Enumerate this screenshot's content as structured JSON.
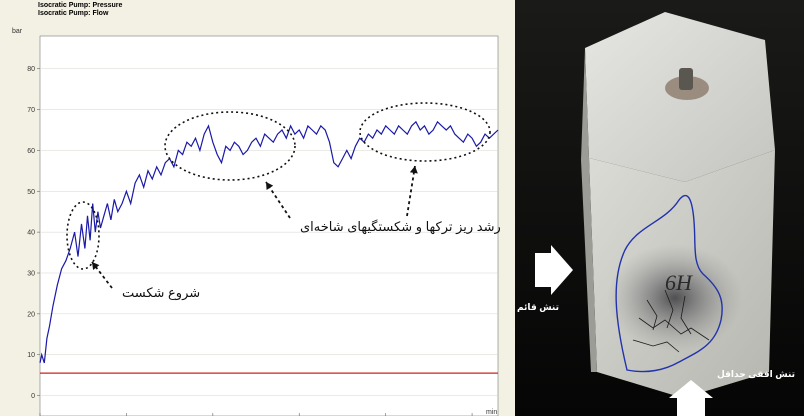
{
  "legend": {
    "pressure_label": "Isocratic Pump: Pressure",
    "flow_label": "Isocratic Pump: Flow",
    "pressure_color": "#1a1aa8",
    "flow_color": "#cc2222"
  },
  "annotations": {
    "crack_growth": "رشد ریز ترکها و شکستگیهای شاخه‌ای",
    "fracture_start": "شروع شکست"
  },
  "photo": {
    "vertical_stress_label": "تنش قائم",
    "min_horizontal_stress_label": "تنش افقی حداقل",
    "specimen_mark": "6H"
  },
  "chart_data": {
    "type": "line",
    "ylabel": "bar",
    "xlabel": "min",
    "ylim": [
      -5,
      88
    ],
    "xlim": [
      0,
      53
    ],
    "yticks": [
      0,
      10,
      20,
      30,
      40,
      50,
      60,
      70,
      80
    ],
    "xticks": [
      0,
      10,
      20,
      30,
      40,
      50
    ],
    "series": [
      {
        "name": "Isocratic Pump: Pressure",
        "color": "#1a1aa8",
        "x": [
          0,
          0.2,
          0.5,
          0.8,
          1.1,
          1.5,
          2.0,
          2.5,
          3.0,
          3.5,
          4.0,
          4.4,
          4.8,
          5.2,
          5.5,
          5.8,
          6.1,
          6.4,
          6.7,
          7.0,
          7.4,
          7.8,
          8.2,
          8.6,
          9.0,
          9.5,
          10.0,
          10.5,
          11.0,
          11.5,
          12.0,
          12.5,
          13.0,
          13.5,
          14.0,
          14.5,
          15.0,
          15.5,
          16.0,
          16.5,
          17.0,
          17.5,
          18.0,
          18.5,
          19.0,
          19.5,
          20.0,
          20.5,
          21.0,
          21.5,
          22.0,
          22.5,
          23.0,
          23.5,
          24.0,
          24.5,
          25.0,
          25.5,
          26.0,
          26.5,
          27.0,
          27.5,
          28.0,
          28.5,
          29.0,
          29.5,
          30.0,
          30.5,
          31.0,
          31.5,
          32.0,
          32.5,
          33.0,
          33.5,
          34.0,
          34.5,
          35.0,
          35.5,
          36.0,
          36.5,
          37.0,
          37.5,
          38.0,
          38.5,
          39.0,
          39.5,
          40.0,
          40.5,
          41.0,
          41.5,
          42.0,
          42.5,
          43.0,
          43.5,
          44.0,
          44.5,
          45.0,
          45.5,
          46.0,
          46.5,
          47.0,
          47.5,
          48.0,
          48.5,
          49.0,
          49.5,
          50.0,
          50.5,
          51.0,
          51.5,
          52.0,
          52.5,
          53.0
        ],
        "values": [
          8,
          10,
          8,
          14,
          17,
          22,
          27,
          31,
          33,
          36,
          40,
          34,
          42,
          36,
          44,
          38,
          47,
          40,
          45,
          41,
          44,
          47,
          43,
          48,
          45,
          47,
          50,
          47,
          52,
          54,
          51,
          55,
          53,
          56,
          54,
          57,
          58,
          56,
          60,
          59,
          62,
          61,
          63,
          60,
          64,
          66,
          62,
          59,
          57,
          61,
          60,
          62,
          61,
          59,
          60,
          62,
          63,
          61,
          64,
          63,
          62,
          64,
          65,
          63,
          66,
          64,
          65,
          63,
          66,
          65,
          64,
          66,
          65,
          62,
          57,
          56,
          58,
          60,
          58,
          61,
          63,
          62,
          64,
          63,
          65,
          64,
          66,
          65,
          64,
          66,
          65,
          64,
          66,
          67,
          65,
          66,
          64,
          65,
          67,
          66,
          65,
          66,
          64,
          63,
          62,
          64,
          63,
          61,
          62,
          64,
          63,
          64,
          65
        ]
      },
      {
        "name": "Isocratic Pump: Flow",
        "color": "#cc2222",
        "x": [
          0,
          53
        ],
        "values": [
          5.5,
          5.5
        ]
      }
    ]
  }
}
